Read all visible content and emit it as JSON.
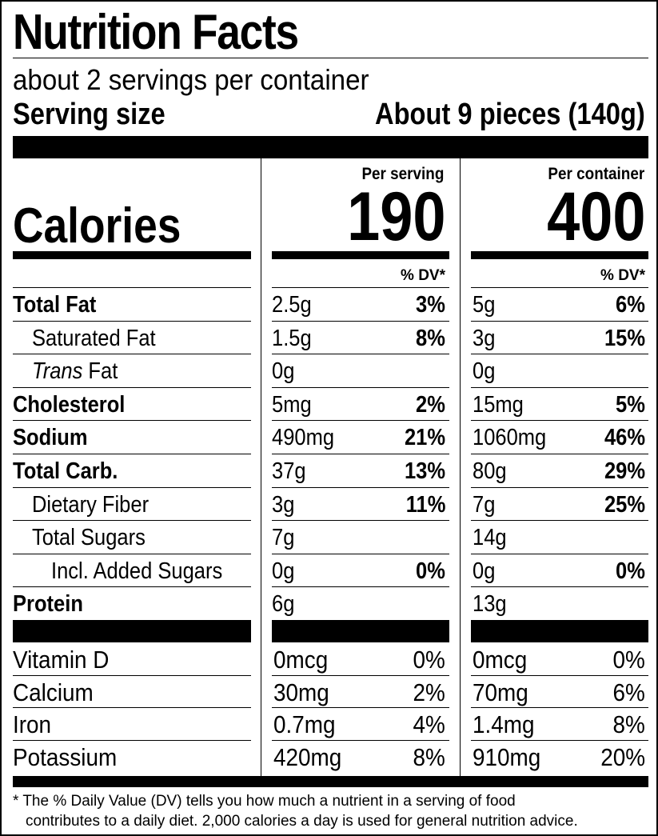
{
  "title": "Nutrition Facts",
  "servings_per_container": "about 2 servings per container",
  "serving_size_label": "Serving size",
  "serving_size_value": "About 9 pieces (140g)",
  "columns": {
    "per_serving": "Per serving",
    "per_container": "Per container"
  },
  "calories": {
    "label": "Calories",
    "per_serving": "190",
    "per_container": "400"
  },
  "dv_header": "% DV*",
  "nutrients": [
    {
      "name": "Total Fat",
      "bold": true,
      "indent": 0,
      "serving_amount": "2.5g",
      "serving_dv": "3%",
      "container_amount": "5g",
      "container_dv": "6%"
    },
    {
      "name": "Saturated Fat",
      "bold": false,
      "indent": 1,
      "serving_amount": "1.5g",
      "serving_dv": "8%",
      "container_amount": "3g",
      "container_dv": "15%"
    },
    {
      "name_italic": "Trans",
      "name": " Fat",
      "bold": false,
      "indent": 1,
      "serving_amount": "0g",
      "serving_dv": "",
      "container_amount": "0g",
      "container_dv": ""
    },
    {
      "name": "Cholesterol",
      "bold": true,
      "indent": 0,
      "serving_amount": "5mg",
      "serving_dv": "2%",
      "container_amount": "15mg",
      "container_dv": "5%"
    },
    {
      "name": "Sodium",
      "bold": true,
      "indent": 0,
      "serving_amount": "490mg",
      "serving_dv": "21%",
      "container_amount": "1060mg",
      "container_dv": "46%"
    },
    {
      "name": "Total Carb.",
      "bold": true,
      "indent": 0,
      "serving_amount": "37g",
      "serving_dv": "13%",
      "container_amount": "80g",
      "container_dv": "29%"
    },
    {
      "name": "Dietary Fiber",
      "bold": false,
      "indent": 1,
      "serving_amount": "3g",
      "serving_dv": "11%",
      "container_amount": "7g",
      "container_dv": "25%"
    },
    {
      "name": "Total Sugars",
      "bold": false,
      "indent": 1,
      "serving_amount": "7g",
      "serving_dv": "",
      "container_amount": "14g",
      "container_dv": ""
    },
    {
      "name": "Incl. Added Sugars",
      "bold": false,
      "indent": 2,
      "serving_amount": "0g",
      "serving_dv": "0%",
      "container_amount": "0g",
      "container_dv": "0%"
    },
    {
      "name": "Protein",
      "bold": true,
      "indent": 0,
      "serving_amount": "6g",
      "serving_dv": "",
      "container_amount": "13g",
      "container_dv": ""
    }
  ],
  "vitamins": [
    {
      "name": "Vitamin D",
      "serving_amount": "0mcg",
      "serving_dv": "0%",
      "container_amount": "0mcg",
      "container_dv": "0%"
    },
    {
      "name": "Calcium",
      "serving_amount": "30mg",
      "serving_dv": "2%",
      "container_amount": "70mg",
      "container_dv": "6%"
    },
    {
      "name": "Iron",
      "serving_amount": "0.7mg",
      "serving_dv": "4%",
      "container_amount": "1.4mg",
      "container_dv": "8%"
    },
    {
      "name": "Potassium",
      "serving_amount": "420mg",
      "serving_dv": "8%",
      "container_amount": "910mg",
      "container_dv": "20%"
    }
  ],
  "footnote": {
    "line1": "* The % Daily Value (DV) tells you how much a nutrient in a serving of food",
    "line2": "contributes to a daily diet. 2,000 calories a day is used for general nutrition advice."
  }
}
